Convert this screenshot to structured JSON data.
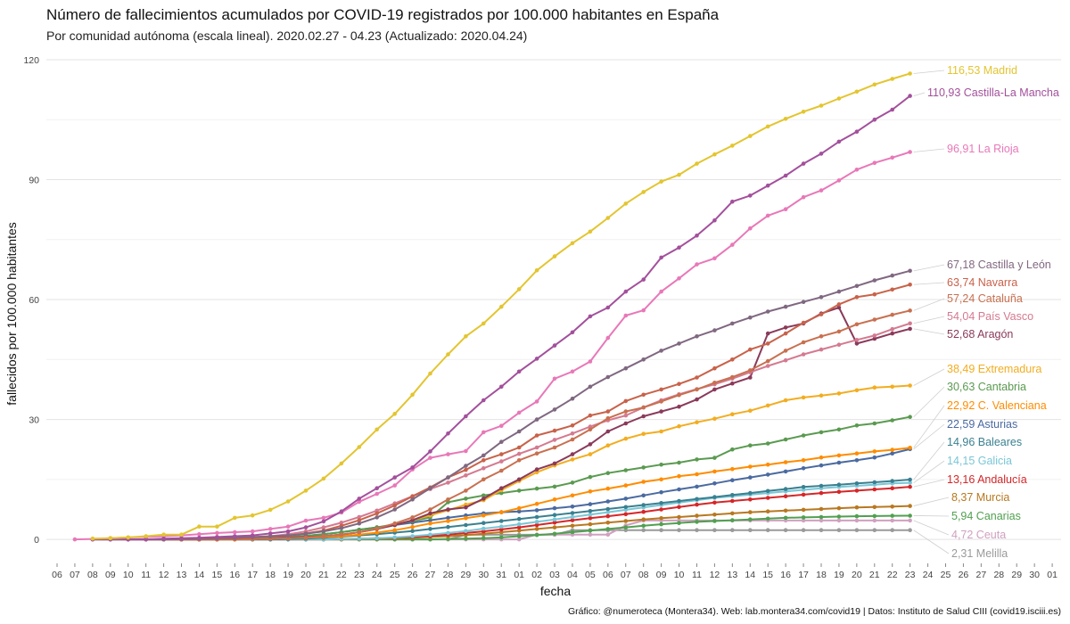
{
  "title": "Número de fallecimientos acumulados por COVID-19 registrados por 100.000 habitantes en España",
  "subtitle": "Por comunidad autónoma (escala lineal). 2020.02.27 - 04.23 (Actualizado: 2020.04.24)",
  "caption": "Gráfico: @numeroteca (Montera34). Web: lab.montera34.com/covid19 | Datos: Instituto de Salud CIII (covid19.isciii.es)",
  "chart_data": {
    "type": "line",
    "xlabel": "fecha",
    "ylabel": "fallecidos por 100.000 habitantes",
    "ylim": [
      -6,
      122
    ],
    "yticks": [
      0,
      30,
      60,
      90,
      120
    ],
    "x_tick_labels": [
      "06",
      "07",
      "08",
      "09",
      "10",
      "11",
      "12",
      "13",
      "14",
      "15",
      "16",
      "17",
      "18",
      "19",
      "20",
      "21",
      "22",
      "23",
      "24",
      "25",
      "26",
      "27",
      "28",
      "29",
      "30",
      "31",
      "01",
      "02",
      "03",
      "04",
      "05",
      "06",
      "07",
      "08",
      "09",
      "10",
      "11",
      "12",
      "13",
      "14",
      "15",
      "16",
      "17",
      "18",
      "19",
      "20",
      "21",
      "22",
      "23",
      "24",
      "25",
      "26",
      "27",
      "28",
      "29",
      "30",
      "01"
    ],
    "x_dates": [
      "2020-03-06",
      "2020-03-07",
      "2020-03-08",
      "2020-03-09",
      "2020-03-10",
      "2020-03-11",
      "2020-03-12",
      "2020-03-13",
      "2020-03-14",
      "2020-03-15",
      "2020-03-16",
      "2020-03-17",
      "2020-03-18",
      "2020-03-19",
      "2020-03-20",
      "2020-03-21",
      "2020-03-22",
      "2020-03-23",
      "2020-03-24",
      "2020-03-25",
      "2020-03-26",
      "2020-03-27",
      "2020-03-28",
      "2020-03-29",
      "2020-03-30",
      "2020-03-31",
      "2020-04-01",
      "2020-04-02",
      "2020-04-03",
      "2020-04-04",
      "2020-04-05",
      "2020-04-06",
      "2020-04-07",
      "2020-04-08",
      "2020-04-09",
      "2020-04-10",
      "2020-04-11",
      "2020-04-12",
      "2020-04-13",
      "2020-04-14",
      "2020-04-15",
      "2020-04-16",
      "2020-04-17",
      "2020-04-18",
      "2020-04-19",
      "2020-04-20",
      "2020-04-21",
      "2020-04-22",
      "2020-04-23",
      "2020-04-24",
      "2020-04-25",
      "2020-04-26",
      "2020-04-27",
      "2020-04-28",
      "2020-04-29",
      "2020-04-30",
      "2020-05-01"
    ],
    "grid": true,
    "legend": "end-of-line labels",
    "series_start_date": "2020-03-08",
    "series": [
      {
        "name": "Madrid",
        "label": "116,53 Madrid",
        "color": "#e3c530",
        "values": [
          0.2,
          0.3,
          0.5,
          0.8,
          1.2,
          1.2,
          3.2,
          3.2,
          5.4,
          6.0,
          7.4,
          9.5,
          12.2,
          15.2,
          19.0,
          23.1,
          27.5,
          31.4,
          36.2,
          41.5,
          46.3,
          50.8,
          54.0,
          58.2,
          62.6,
          67.3,
          70.8,
          74.1,
          77.0,
          80.4,
          84.0,
          86.9,
          89.5,
          91.2,
          94.0,
          96.3,
          98.5,
          100.9,
          103.3,
          105.2,
          107.0,
          108.5,
          110.3,
          112.0,
          113.8,
          115.2,
          116.53
        ]
      },
      {
        "name": "Castilla-La Mancha",
        "label": "110,93 Castilla-La Mancha",
        "color": "#a3509c",
        "values": [
          0,
          0,
          0,
          0,
          0.2,
          0.3,
          0.4,
          0.6,
          0.8,
          1.0,
          1.5,
          2.0,
          3.0,
          4.5,
          7.0,
          10.2,
          12.8,
          15.5,
          18.0,
          22.0,
          26.5,
          30.8,
          34.8,
          38.2,
          42.0,
          45.2,
          48.5,
          51.8,
          55.8,
          58.0,
          62.0,
          65.0,
          70.5,
          73.0,
          76.0,
          79.8,
          84.5,
          86.0,
          88.5,
          91.0,
          94.0,
          96.5,
          99.5,
          102.0,
          105.0,
          107.5,
          110.93
        ]
      },
      {
        "name": "La Rioja",
        "label": "96,91 La Rioja",
        "color": "#e878b8",
        "values": [
          0,
          0.1,
          0.3,
          0.5,
          0.6,
          0.8,
          1.0,
          1.3,
          1.6,
          1.8,
          2.0,
          2.6,
          3.2,
          4.7,
          5.4,
          6.7,
          9.4,
          11.4,
          13.5,
          17.5,
          20.4,
          21.3,
          22.1,
          26.8,
          28.4,
          31.7,
          34.5,
          40.2,
          42.0,
          44.5,
          50.4,
          56.0,
          57.3,
          62.0,
          65.3,
          68.8,
          70.3,
          73.7,
          77.8,
          81.0,
          82.6,
          85.6,
          87.3,
          89.8,
          92.5,
          94.2,
          95.5,
          96.91
        ]
      },
      {
        "name": "Castilla y León",
        "label": "67,18 Castilla y León",
        "color": "#806880",
        "values": [
          0,
          0,
          0,
          0,
          0.1,
          0.2,
          0.3,
          0.4,
          0.6,
          0.8,
          1.0,
          1.4,
          2.0,
          2.8,
          4.0,
          5.5,
          7.5,
          10.0,
          12.8,
          15.5,
          18.4,
          21.0,
          24.4,
          27.0,
          30.0,
          32.5,
          35.2,
          38.2,
          40.6,
          42.8,
          45.0,
          47.2,
          49.0,
          50.8,
          52.3,
          54.0,
          55.5,
          57.0,
          58.2,
          59.4,
          60.6,
          62.0,
          63.4,
          64.8,
          66.0,
          67.18
        ]
      },
      {
        "name": "Navarra",
        "label": "63,74 Navarra",
        "color": "#c8624a",
        "values": [
          0,
          0,
          0,
          0,
          0,
          0.1,
          0.2,
          0.4,
          0.6,
          0.9,
          1.5,
          2.2,
          3.4,
          4.8,
          6.5,
          8.5,
          10.8,
          13.0,
          15.5,
          17.4,
          19.8,
          21.3,
          23.0,
          26.0,
          27.2,
          28.5,
          31.0,
          32.0,
          34.6,
          36.2,
          37.5,
          38.9,
          40.5,
          42.8,
          45.0,
          47.5,
          49.0,
          51.5,
          54.2,
          56.3,
          58.8,
          60.6,
          61.3,
          62.5,
          63.74
        ]
      },
      {
        "name": "Cataluña",
        "label": "57,24 Cataluña",
        "color": "#c87050",
        "values": [
          0,
          0,
          0,
          0,
          0,
          0.1,
          0.2,
          0.3,
          0.5,
          0.8,
          1.2,
          1.8,
          2.7,
          4.0,
          5.5,
          7.5,
          10.0,
          12.2,
          15.0,
          17.2,
          19.8,
          21.5,
          23.0,
          25.0,
          27.5,
          30.3,
          32.0,
          33.0,
          34.5,
          36.1,
          37.5,
          39.2,
          40.6,
          42.3,
          44.6,
          47.2,
          49.3,
          50.8,
          52.0,
          53.8,
          55.0,
          56.2,
          57.24
        ]
      },
      {
        "name": "País Vasco",
        "label": "54,04 País Vasco",
        "color": "#d47a90",
        "values": [
          0,
          0,
          0,
          0,
          0,
          0,
          0.1,
          0.2,
          0.3,
          0.5,
          0.8,
          1.3,
          2.0,
          3.0,
          4.2,
          5.6,
          7.2,
          9.0,
          10.8,
          12.6,
          14.2,
          16.0,
          17.8,
          19.5,
          21.4,
          23.0,
          24.9,
          26.5,
          28.2,
          29.8,
          31.0,
          33.0,
          34.8,
          36.3,
          37.6,
          38.8,
          40.2,
          41.8,
          43.4,
          44.8,
          46.3,
          47.5,
          48.7,
          49.9,
          51.0,
          52.6,
          54.04
        ]
      },
      {
        "name": "Aragón",
        "label": "52,68 Aragón",
        "color": "#8a3a5a",
        "values": [
          0,
          0,
          0,
          0,
          0,
          0,
          0.1,
          0.2,
          0.3,
          0.4,
          0.6,
          0.8,
          1.2,
          1.8,
          2.6,
          3.6,
          4.8,
          6.5,
          7.5,
          8.0,
          10.2,
          12.8,
          15.0,
          17.5,
          19.0,
          21.3,
          23.8,
          27.0,
          29.0,
          30.8,
          32.0,
          33.2,
          35.0,
          37.5,
          39.0,
          40.5,
          51.5,
          53.0,
          54.0,
          56.5,
          58.0,
          49.0,
          50.2,
          51.5,
          52.68
        ]
      },
      {
        "name": "Extremadura",
        "label": "38,49 Extremadura",
        "color": "#f2ad20",
        "values": [
          0,
          0,
          0,
          0,
          0,
          0,
          0.1,
          0.2,
          0.3,
          0.5,
          0.8,
          1.2,
          1.8,
          2.6,
          3.6,
          4.8,
          6.0,
          7.3,
          8.7,
          9.8,
          12.3,
          14.6,
          16.8,
          18.5,
          20.0,
          21.3,
          23.5,
          25.2,
          26.4,
          27.0,
          28.3,
          29.3,
          30.2,
          31.3,
          32.2,
          33.5,
          34.8,
          35.5,
          36.0,
          36.5,
          37.3,
          38.0,
          38.2,
          38.49
        ]
      },
      {
        "name": "Cantabria",
        "label": "30,63 Cantabria",
        "color": "#5a9a50",
        "values": [
          0,
          0,
          0,
          0,
          0,
          0,
          0,
          0.1,
          0.2,
          0.3,
          0.4,
          0.6,
          0.9,
          1.3,
          1.8,
          2.4,
          3.0,
          3.8,
          4.6,
          5.5,
          9.3,
          10.2,
          11.0,
          11.6,
          12.2,
          12.7,
          13.2,
          14.2,
          15.6,
          16.6,
          17.3,
          18.0,
          18.7,
          19.2,
          20.0,
          20.4,
          22.5,
          23.5,
          24.0,
          25.0,
          26.0,
          26.8,
          27.5,
          28.5,
          29.0,
          29.8,
          30.63
        ]
      },
      {
        "name": "C. Valenciana",
        "label": "22,92 C. Valenciana",
        "color": "#ff8c00",
        "values": [
          0,
          0,
          0,
          0,
          0.1,
          0.2,
          0.3,
          0.4,
          0.6,
          0.8,
          1.2,
          1.7,
          2.3,
          3.1,
          4.0,
          4.6,
          5.3,
          6.0,
          6.8,
          7.8,
          8.9,
          10.0,
          11.0,
          12.0,
          12.7,
          13.5,
          14.4,
          15.0,
          15.8,
          16.3,
          17.0,
          17.6,
          18.2,
          18.7,
          19.3,
          19.8,
          20.5,
          21.0,
          21.5,
          22.0,
          22.4,
          22.92
        ]
      },
      {
        "name": "Asturias",
        "label": "22,59 Asturias",
        "color": "#4a6aa0",
        "values": [
          0,
          0,
          0,
          0,
          0,
          0.1,
          0.2,
          0.4,
          0.6,
          0.9,
          1.3,
          1.8,
          2.4,
          3.0,
          3.6,
          4.2,
          4.8,
          5.4,
          6.0,
          6.5,
          6.8,
          7.0,
          7.3,
          7.8,
          8.2,
          8.8,
          9.5,
          10.2,
          11.0,
          11.8,
          12.5,
          13.2,
          14.0,
          14.8,
          15.5,
          16.2,
          17.0,
          17.8,
          18.5,
          19.2,
          19.8,
          20.5,
          21.5,
          22.59
        ]
      },
      {
        "name": "Baleares",
        "label": "14,96 Baleares",
        "color": "#3a8090",
        "values": [
          0,
          0,
          0,
          0,
          0,
          0,
          0,
          0.1,
          0.2,
          0.4,
          0.7,
          1.0,
          1.3,
          1.7,
          2.1,
          2.6,
          3.1,
          3.6,
          4.1,
          4.6,
          5.1,
          5.6,
          6.1,
          6.6,
          7.1,
          7.6,
          8.1,
          8.6,
          9.1,
          9.6,
          10.1,
          10.6,
          11.1,
          11.6,
          12.1,
          12.6,
          13.1,
          13.4,
          13.7,
          14.0,
          14.3,
          14.6,
          14.96
        ]
      },
      {
        "name": "Galicia",
        "label": "14,15 Galicia",
        "color": "#7ac6d6",
        "values": [
          0,
          0,
          0,
          0,
          0,
          0,
          0,
          0.1,
          0.2,
          0.3,
          0.5,
          0.8,
          1.2,
          1.6,
          2.1,
          2.7,
          3.2,
          3.8,
          4.4,
          5.0,
          5.6,
          6.2,
          6.8,
          7.4,
          8.0,
          8.6,
          9.2,
          9.8,
          10.4,
          10.8,
          11.2,
          11.6,
          12.0,
          12.4,
          12.8,
          13.1,
          13.4,
          13.7,
          14.0,
          14.15
        ]
      },
      {
        "name": "Andalucía",
        "label": "13,16 Andalucía",
        "color": "#d62628",
        "values": [
          0,
          0,
          0,
          0,
          0,
          0,
          0.1,
          0.2,
          0.3,
          0.4,
          0.6,
          0.9,
          1.2,
          1.6,
          2.0,
          2.5,
          3.0,
          3.6,
          4.2,
          4.8,
          5.3,
          5.8,
          6.3,
          6.9,
          7.5,
          8.1,
          8.7,
          9.2,
          9.6,
          10.0,
          10.4,
          10.8,
          11.2,
          11.6,
          11.9,
          12.2,
          12.5,
          12.8,
          13.16
        ]
      },
      {
        "name": "Murcia",
        "label": "8,37 Murcia",
        "color": "#b87820",
        "values": [
          0,
          0,
          0,
          0,
          0,
          0,
          0,
          0.1,
          0.2,
          0.3,
          0.4,
          0.6,
          0.8,
          1.1,
          1.4,
          1.8,
          2.2,
          2.6,
          3.0,
          3.4,
          3.8,
          4.2,
          4.6,
          5.0,
          5.3,
          5.6,
          5.9,
          6.2,
          6.5,
          6.8,
          7.0,
          7.2,
          7.4,
          7.6,
          7.8,
          8.0,
          8.1,
          8.2,
          8.37
        ]
      },
      {
        "name": "Canarias",
        "label": "5,94 Canarias",
        "color": "#50a050",
        "values": [
          0,
          0,
          0,
          0,
          0,
          0,
          0,
          0.1,
          0.2,
          0.3,
          0.5,
          0.8,
          1.1,
          1.4,
          1.8,
          2.2,
          2.6,
          3.0,
          3.4,
          3.8,
          4.1,
          4.4,
          4.6,
          4.8,
          5.0,
          5.2,
          5.4,
          5.5,
          5.6,
          5.7,
          5.8,
          5.85,
          5.9,
          5.94
        ]
      },
      {
        "name": "Ceuta",
        "label": "4,72 Ceuta",
        "color": "#d0a0c0",
        "values": [
          0,
          0,
          0,
          0,
          0,
          0,
          0,
          0,
          0,
          0,
          0,
          0,
          0,
          0,
          0,
          0,
          0,
          0,
          0,
          0,
          0,
          0,
          0,
          0,
          0,
          1.2,
          1.2,
          1.2,
          1.2,
          1.2,
          3.5,
          4.72,
          4.72,
          4.72,
          4.72,
          4.72,
          4.72,
          4.72,
          4.72,
          4.72,
          4.72,
          4.72,
          4.72,
          4.72,
          4.72,
          4.72,
          4.72
        ]
      },
      {
        "name": "Melilla",
        "label": "2,31 Melilla",
        "color": "#9a9a9a",
        "values": [
          0,
          0,
          0,
          0,
          0,
          0,
          0,
          0,
          0,
          0,
          0,
          0,
          0,
          0,
          0,
          0,
          0,
          0,
          0,
          0,
          0,
          1.15,
          1.15,
          1.15,
          1.15,
          1.15,
          1.15,
          2.31,
          2.31,
          2.31,
          2.31,
          2.31,
          2.31,
          2.31,
          2.31,
          2.31,
          2.31,
          2.31,
          2.31,
          2.31,
          2.31,
          2.31,
          2.31,
          2.31,
          2.31,
          2.31,
          2.31
        ]
      }
    ]
  }
}
